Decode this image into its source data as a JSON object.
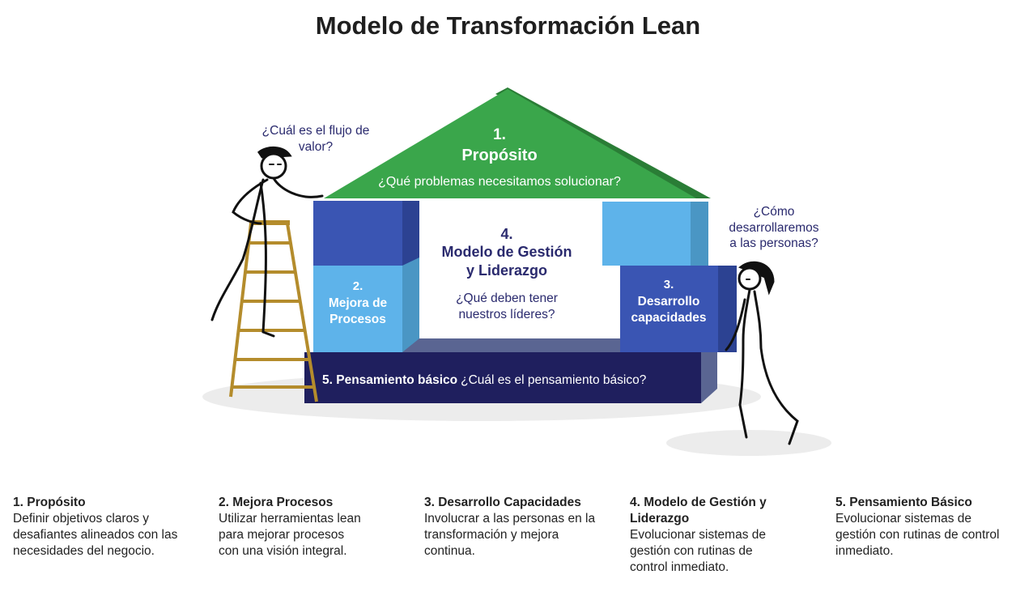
{
  "title": "Modelo de Transformación Lean",
  "house": {
    "roof": {
      "number": "1.",
      "title": "Propósito",
      "question": "¿Qué problemas necesitamos solucionar?"
    },
    "center": {
      "number": "4.",
      "title_line1": "Modelo de Gestión",
      "title_line2": "y Liderazgo",
      "question_line1": "¿Qué deben tener",
      "question_line2": "nuestros líderes?"
    },
    "left": {
      "number": "2.",
      "line1": "Mejora de",
      "line2": "Procesos"
    },
    "right": {
      "number": "3.",
      "line1": "Desarrollo",
      "line2": "capacidades"
    },
    "base": {
      "title": "5. Pensamiento básico",
      "question": "¿Cuál es el pensamiento básico?"
    }
  },
  "speech": {
    "left_line1": "¿Cuál es el flujo de",
    "left_line2": "valor?",
    "right_line1": "¿Cómo",
    "right_line2": "desarrollaremos",
    "right_line3": "a las personas?"
  },
  "legend": [
    {
      "title": "1. Propósito",
      "desc": "Definir objetivos claros y desafiantes alineados con las necesidades del negocio."
    },
    {
      "title": "2. Mejora Procesos",
      "desc": "Utilizar herramientas lean para mejorar procesos con una visión integral."
    },
    {
      "title": "3. Desarrollo Capacidades",
      "desc": "Involucrar a las personas en la transformación y mejora continua."
    },
    {
      "title": "4. Modelo de Gestión y Liderazgo",
      "desc": "Evolucionar sistemas de gestión con rutinas de control inmediato."
    },
    {
      "title": "5. Pensamiento Básico",
      "desc": "Evolucionar sistemas de gestión con rutinas de control inmediato."
    }
  ],
  "colors": {
    "roof": "#3aa64b",
    "roof_dark": "#2a7d36",
    "dark_blue": "#3a55b3",
    "light_blue": "#5eb3ea",
    "navy": "#1f1f5e",
    "text_navy": "#2a2a6e"
  }
}
